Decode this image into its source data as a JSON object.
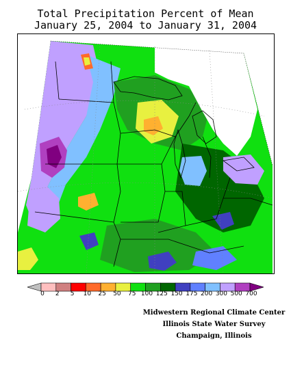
{
  "title": {
    "line1": "Total Precipitation Percent of Mean",
    "line2": "January 25, 2004 to January 31, 2004"
  },
  "legend": {
    "labels": [
      "0",
      "2",
      "5",
      "10",
      "25",
      "50",
      "75",
      "100",
      "125",
      "150",
      "175",
      "200",
      "300",
      "500",
      "700"
    ],
    "colors": [
      "#c0c0c0",
      "#ffbfbf",
      "#d08080",
      "#ff0000",
      "#ff6a2a",
      "#ffb030",
      "#e8f040",
      "#10e010",
      "#20a020",
      "#006600",
      "#4040c0",
      "#6080ff",
      "#80c0ff",
      "#c0a0ff",
      "#b040c0",
      "#800080"
    ]
  },
  "credits": {
    "line1": "Midwestern Regional Climate Center",
    "line2": "Illinois State Water Survey",
    "line3": "Champaign, Illinois"
  },
  "palette": {
    "light_green": "#10e010",
    "mid_green": "#20a020",
    "dark_green": "#006600",
    "yellow_green": "#e8f040",
    "orange": "#ffb030",
    "light_blue": "#80c0ff",
    "blue": "#6080ff",
    "dark_blue": "#4040c0",
    "lavender": "#c0a0ff",
    "purple": "#b040c0",
    "dark_purple": "#800080"
  }
}
